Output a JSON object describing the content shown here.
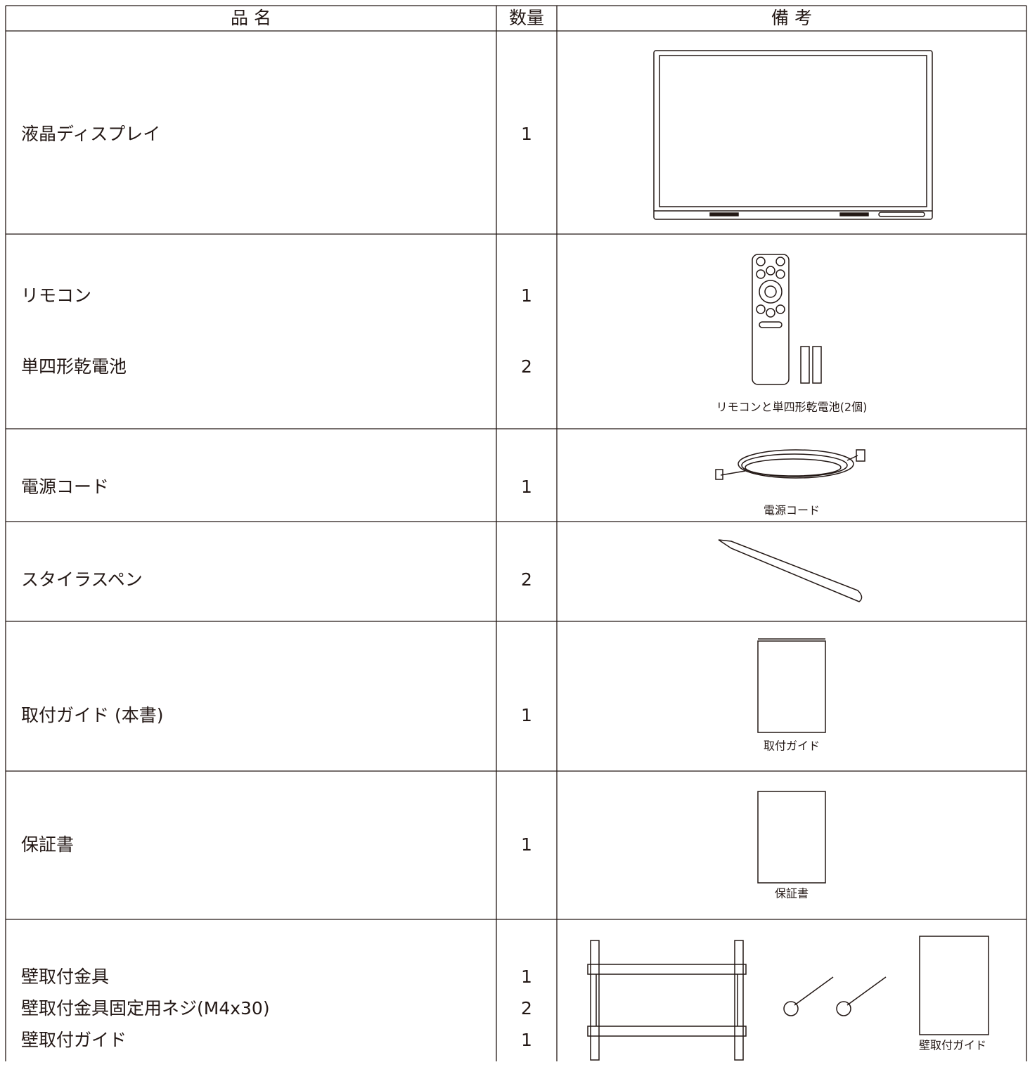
{
  "table": {
    "header": [
      "品 名",
      "数量",
      "備 考"
    ],
    "rows": [
      {
        "items": [
          {
            "name": "液晶ディスプレイ",
            "quantity": "1"
          }
        ]
      },
      {
        "items": [
          {
            "name": "リモコン",
            "quantity": "1"
          },
          {
            "name": "単四形乾電池",
            "quantity": "2"
          }
        ],
        "caption": "リモコンと単四形乾電池(2個)"
      },
      {
        "items": [
          {
            "name": "電源コード",
            "quantity": "1"
          }
        ],
        "caption": "電源コード"
      },
      {
        "items": [
          {
            "name": "スタイラスペン",
            "quantity": "2"
          }
        ]
      },
      {
        "items": [
          {
            "name": "取付ガイド (本書)",
            "quantity": "1"
          }
        ],
        "caption": "取付ガイド"
      },
      {
        "items": [
          {
            "name": "保証書",
            "quantity": "1"
          }
        ],
        "caption": "保証書"
      },
      {
        "items": [
          {
            "name": "壁取付金具",
            "quantity": "1"
          },
          {
            "name": "壁取付金具固定用ネジ(M4x30)",
            "quantity": "2"
          },
          {
            "name": "壁取付ガイド",
            "quantity": "1"
          }
        ],
        "caption": "壁取付ガイド"
      }
    ]
  }
}
